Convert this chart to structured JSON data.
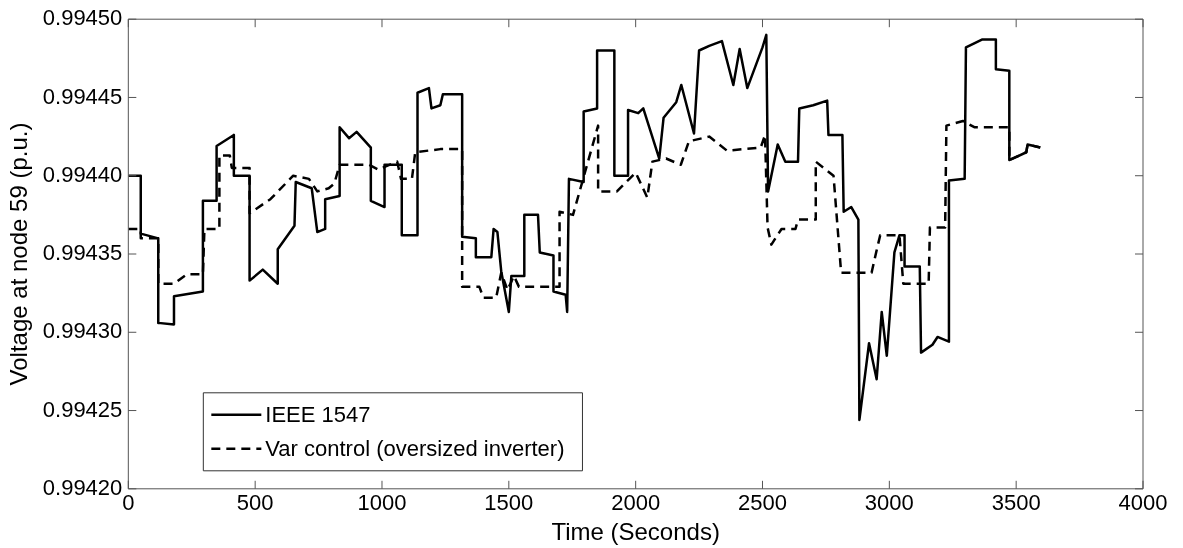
{
  "chart_data": {
    "type": "line",
    "xlabel": "Time (Seconds)",
    "ylabel": "Voltage at node 59 (p.u.)",
    "xlim": [
      0,
      4000
    ],
    "xticks": [
      0,
      500,
      1000,
      1500,
      2000,
      2500,
      3000,
      3500,
      4000
    ],
    "ylim": [
      0.9942,
      0.9945
    ],
    "yticks": [
      {
        "value": 0.9942,
        "label": "0.99420"
      },
      {
        "value": 0.99425,
        "label": "0.99425"
      },
      {
        "value": 0.9943,
        "label": "0.99430"
      },
      {
        "value": 0.99435,
        "label": "0.99435"
      },
      {
        "value": 0.9944,
        "label": "0.99440"
      },
      {
        "value": 0.99445,
        "label": "0.99445"
      },
      {
        "value": 0.9945,
        "label": "0.99450"
      }
    ],
    "grid": false,
    "legend": "bottom left",
    "marker": "none",
    "series": [
      {
        "name": "IEEE 1547",
        "color": "#000000",
        "line_style": "solid",
        "x": [
          0,
          49,
          49,
          118,
          118,
          180,
          180,
          294,
          294,
          348,
          348,
          416,
          416,
          478,
          478,
          530,
          589,
          589,
          655,
          660,
          723,
          745,
          776,
          776,
          833,
          833,
          870,
          900,
          956,
          956,
          1010,
          1010,
          1078,
          1078,
          1140,
          1140,
          1185,
          1195,
          1230,
          1240,
          1316,
          1316,
          1370,
          1370,
          1431,
          1440,
          1455,
          1470,
          1500,
          1510,
          1560,
          1561,
          1615,
          1622,
          1676,
          1676,
          1724,
          1730,
          1737,
          1795,
          1795,
          1848,
          1848,
          1916,
          1916,
          1970,
          1970,
          2010,
          2030,
          2093,
          2110,
          2160,
          2180,
          2230,
          2250,
          2290,
          2340,
          2385,
          2410,
          2440,
          2500,
          2515,
          2522,
          2560,
          2590,
          2640,
          2645,
          2700,
          2755,
          2760,
          2815,
          2820,
          2850,
          2878,
          2882,
          2920,
          2950,
          2970,
          2990,
          3020,
          3040,
          3060,
          3060,
          3120,
          3125,
          3170,
          3190,
          3235,
          3235,
          3297,
          3302,
          3365,
          3420,
          3420,
          3473,
          3473,
          3540,
          3545,
          3595
        ],
        "values": [
          0.9944,
          0.9944,
          0.994363,
          0.99436,
          0.994306,
          0.994305,
          0.994323,
          0.994326,
          0.994384,
          0.994384,
          0.994419,
          0.994426,
          0.9944,
          0.9944,
          0.994333,
          0.99434,
          0.994331,
          0.994353,
          0.994368,
          0.994396,
          0.994392,
          0.994364,
          0.994366,
          0.994385,
          0.994387,
          0.994431,
          0.994424,
          0.994428,
          0.994418,
          0.994384,
          0.99438,
          0.994407,
          0.994407,
          0.994362,
          0.994362,
          0.994453,
          0.994456,
          0.994443,
          0.994445,
          0.994452,
          0.994452,
          0.994361,
          0.99436,
          0.994348,
          0.994348,
          0.994366,
          0.994364,
          0.994339,
          0.994313,
          0.994336,
          0.994336,
          0.994375,
          0.994375,
          0.994351,
          0.994349,
          0.994326,
          0.994324,
          0.994313,
          0.994398,
          0.994396,
          0.994441,
          0.994443,
          0.99448,
          0.99448,
          0.9944,
          0.9944,
          0.994442,
          0.99444,
          0.994443,
          0.994411,
          0.994437,
          0.994447,
          0.994458,
          0.994427,
          0.99448,
          0.994483,
          0.994486,
          0.994458,
          0.994481,
          0.994456,
          0.994482,
          0.99449,
          0.99439,
          0.99442,
          0.994409,
          0.994409,
          0.994443,
          0.994445,
          0.994448,
          0.994426,
          0.994426,
          0.994377,
          0.99438,
          0.994372,
          0.994244,
          0.994293,
          0.99427,
          0.994313,
          0.994285,
          0.994351,
          0.994362,
          0.994362,
          0.994342,
          0.994342,
          0.994287,
          0.994292,
          0.994297,
          0.994294,
          0.994397,
          0.994398,
          0.994482,
          0.994487,
          0.994487,
          0.994468,
          0.994467,
          0.99441,
          0.994415,
          0.99442,
          0.994418
        ]
      },
      {
        "name": "Var control (oversized inverter)",
        "color": "#000000",
        "line_style": "dashed",
        "x": [
          0,
          49,
          49,
          118,
          118,
          180,
          230,
          294,
          300,
          318,
          359,
          359,
          400,
          408,
          478,
          478,
          560,
          650,
          712,
          745,
          790,
          812,
          833,
          949,
          985,
          1060,
          1075,
          1118,
          1131,
          1230,
          1316,
          1316,
          1384,
          1400,
          1450,
          1470,
          1495,
          1520,
          1540,
          1630,
          1700,
          1700,
          1753,
          1753,
          1812,
          1812,
          1852,
          1852,
          1926,
          2000,
          2046,
          2066,
          2120,
          2178,
          2210,
          2290,
          2360,
          2493,
          2510,
          2520,
          2535,
          2575,
          2630,
          2640,
          2710,
          2710,
          2780,
          2810,
          2930,
          2948,
          2964,
          3040,
          3055,
          3155,
          3160,
          3220,
          3225,
          3290,
          3335,
          3386,
          3386,
          3473,
          3473,
          3540,
          3545,
          3595
        ],
        "values": [
          0.994366,
          0.994366,
          0.99436,
          0.99436,
          0.994331,
          0.994331,
          0.994337,
          0.994337,
          0.994366,
          0.994366,
          0.994366,
          0.994413,
          0.994413,
          0.994405,
          0.994405,
          0.994376,
          0.994385,
          0.9944,
          0.994398,
          0.99439,
          0.994392,
          0.994395,
          0.994407,
          0.994407,
          0.994404,
          0.994409,
          0.994398,
          0.994398,
          0.994415,
          0.994417,
          0.994417,
          0.994329,
          0.994329,
          0.994322,
          0.994322,
          0.994338,
          0.994327,
          0.994336,
          0.994329,
          0.994329,
          0.994329,
          0.994377,
          0.994375,
          0.994375,
          0.994409,
          0.994409,
          0.994432,
          0.99439,
          0.99439,
          0.994402,
          0.994386,
          0.994409,
          0.994411,
          0.994407,
          0.994422,
          0.994425,
          0.994416,
          0.994418,
          0.994426,
          0.994367,
          0.994356,
          0.994366,
          0.994366,
          0.994372,
          0.994372,
          0.994409,
          0.9944,
          0.994338,
          0.994338,
          0.994351,
          0.994362,
          0.994362,
          0.994331,
          0.994331,
          0.994367,
          0.994367,
          0.994432,
          0.994435,
          0.994431,
          0.994431,
          0.994431,
          0.994431,
          0.99441,
          0.994415,
          0.99442,
          0.994418
        ]
      }
    ]
  }
}
